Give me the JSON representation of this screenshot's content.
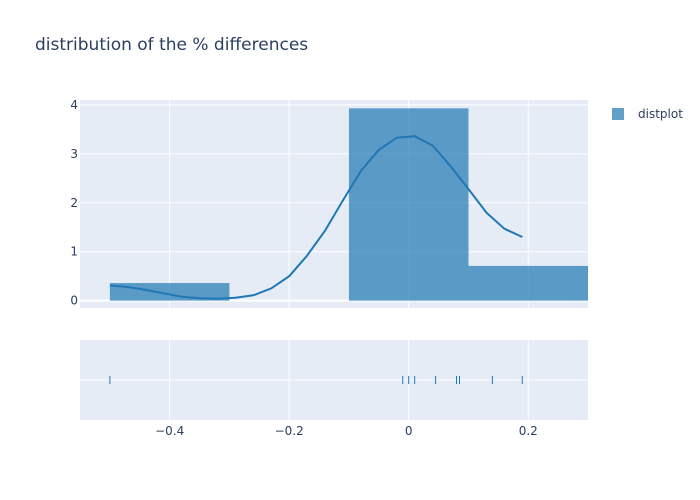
{
  "chart_data": {
    "type": "histogram",
    "title": "distribution of the % differences",
    "xlabel": "",
    "ylabel": "",
    "legend": {
      "placement": "top-right",
      "entries": [
        "distplot"
      ]
    },
    "colors": {
      "series": "#1f77b4",
      "plot_bg": "#e5ecf6",
      "text": "#2a3f5f",
      "grid": "#ffffff"
    },
    "grid": true,
    "xlim": [
      -0.55,
      0.3
    ],
    "ylim": [
      -0.15,
      4.1
    ],
    "x_ticks": [
      -0.4,
      -0.2,
      0,
      0.2
    ],
    "x_tick_labels": [
      "−0.4",
      "−0.2",
      "0",
      "0.2"
    ],
    "y_ticks": [
      0,
      1,
      2,
      3,
      4
    ],
    "y_tick_labels": [
      "0",
      "1",
      "2",
      "3",
      "4"
    ],
    "series": [
      {
        "name": "distplot",
        "histogram": [
          {
            "x0": -0.5,
            "x1": -0.3,
            "value": 0.36
          },
          {
            "x0": -0.3,
            "x1": -0.1,
            "value": 0
          },
          {
            "x0": -0.1,
            "x1": 0.1,
            "value": 3.93
          },
          {
            "x0": 0.1,
            "x1": 0.3,
            "value": 0.71
          }
        ],
        "kde": {
          "x": [
            -0.5,
            -0.47,
            -0.44,
            -0.41,
            -0.38,
            -0.35,
            -0.32,
            -0.29,
            -0.26,
            -0.23,
            -0.2,
            -0.17,
            -0.14,
            -0.11,
            -0.08,
            -0.05,
            -0.02,
            0.01,
            0.04,
            0.07,
            0.1,
            0.13,
            0.16,
            0.19
          ],
          "y": [
            0.31,
            0.28,
            0.22,
            0.15,
            0.08,
            0.05,
            0.04,
            0.06,
            0.11,
            0.25,
            0.5,
            0.92,
            1.43,
            2.05,
            2.65,
            3.08,
            3.33,
            3.36,
            3.17,
            2.75,
            2.28,
            1.8,
            1.47,
            1.3
          ]
        },
        "rug": [
          -0.5,
          -0.01,
          0,
          0.01,
          0.045,
          0.08,
          0.085,
          0.14,
          0.19
        ]
      }
    ]
  }
}
